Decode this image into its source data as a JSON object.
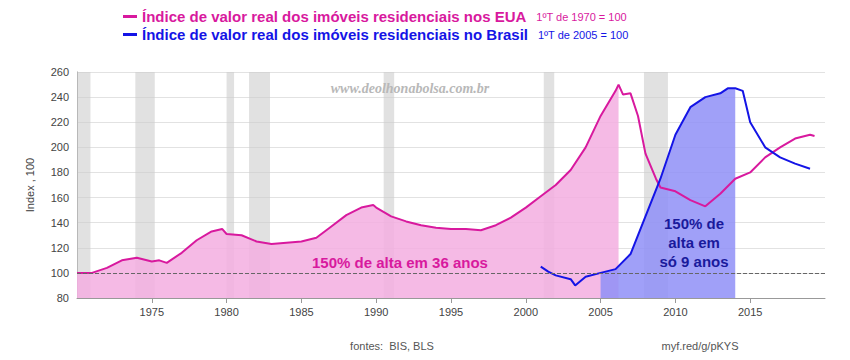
{
  "chart_data": {
    "type": "line",
    "y_label": "Index , 100",
    "watermark": "www.deolhonabolsa.com.br",
    "sources": "fontes:  BIS, BLS",
    "link": "myf.red/g/pKYS",
    "xlim": [
      1970,
      2020
    ],
    "xticks": [
      1975,
      1980,
      1985,
      1990,
      1995,
      2000,
      2005,
      2010,
      2015
    ],
    "ylim": [
      80,
      260
    ],
    "yticks": [
      80,
      100,
      120,
      140,
      160,
      180,
      200,
      220,
      240,
      260
    ],
    "grid": true,
    "legend": "top",
    "reference_line": 100,
    "recessions": [
      [
        1970.0,
        1970.9
      ],
      [
        1973.9,
        1975.2
      ],
      [
        1980.0,
        1980.5
      ],
      [
        1981.5,
        1982.9
      ],
      [
        1990.5,
        1991.2
      ],
      [
        2001.2,
        2001.9
      ],
      [
        2007.9,
        2009.5
      ]
    ],
    "annotations": [
      "150% de alta em 36 anos",
      "150% de\nalta em\nsó 9 anos"
    ],
    "series": [
      {
        "name": "Índice de valor real dos imóveis residenciais nos EUA",
        "base_label": "1ºT de 1970 = 100",
        "color": "#d8199e",
        "fill_color": "#f3aee0",
        "shaded_x": [
          1970,
          2006.2
        ],
        "x": [
          1970,
          1971,
          1972,
          1973,
          1974,
          1975,
          1975.5,
          1976,
          1977,
          1978,
          1979,
          1979.7,
          1980,
          1981,
          1982,
          1983,
          1984,
          1985,
          1986,
          1987,
          1988,
          1989,
          1989.8,
          1990,
          1991,
          1992,
          1993,
          1994,
          1995,
          1996,
          1997,
          1998,
          1999,
          2000,
          2001,
          2002,
          2003,
          2004,
          2005,
          2006,
          2006.2,
          2006.5,
          2007,
          2007.5,
          2008,
          2008.7,
          2009,
          2010,
          2011,
          2012,
          2013,
          2014,
          2015,
          2016,
          2017,
          2018,
          2019,
          2019.3
        ],
        "values": [
          100,
          100,
          104,
          110,
          112,
          109,
          110,
          108,
          116,
          126,
          133,
          135,
          131,
          130,
          125,
          123,
          124,
          125,
          128,
          137,
          146,
          152,
          154,
          152,
          145,
          141,
          138,
          136,
          135,
          135,
          134,
          138,
          144,
          152,
          161,
          170,
          182,
          200,
          225,
          245,
          250,
          242,
          243,
          225,
          195,
          175,
          168,
          165,
          158,
          153,
          163,
          175,
          180,
          192,
          200,
          207,
          210,
          209
        ]
      },
      {
        "name": "Índice de valor real dos imóveis residenciais no Brasil",
        "base_label": "1ºT de 2005 = 100",
        "color": "#1414e6",
        "fill_color": "#8f8ff7",
        "shaded_x": [
          2005,
          2014
        ],
        "x": [
          2001,
          2001.5,
          2002,
          2003,
          2003.3,
          2004,
          2005,
          2006,
          2007,
          2008,
          2009,
          2010,
          2011,
          2012,
          2013,
          2013.5,
          2014,
          2014.5,
          2015,
          2016,
          2017,
          2018,
          2019
        ],
        "values": [
          105,
          101,
          98,
          95,
          90,
          97,
          100,
          103,
          115,
          145,
          175,
          210,
          232,
          240,
          243,
          247,
          247,
          245,
          220,
          200,
          192,
          187,
          183
        ]
      }
    ]
  }
}
